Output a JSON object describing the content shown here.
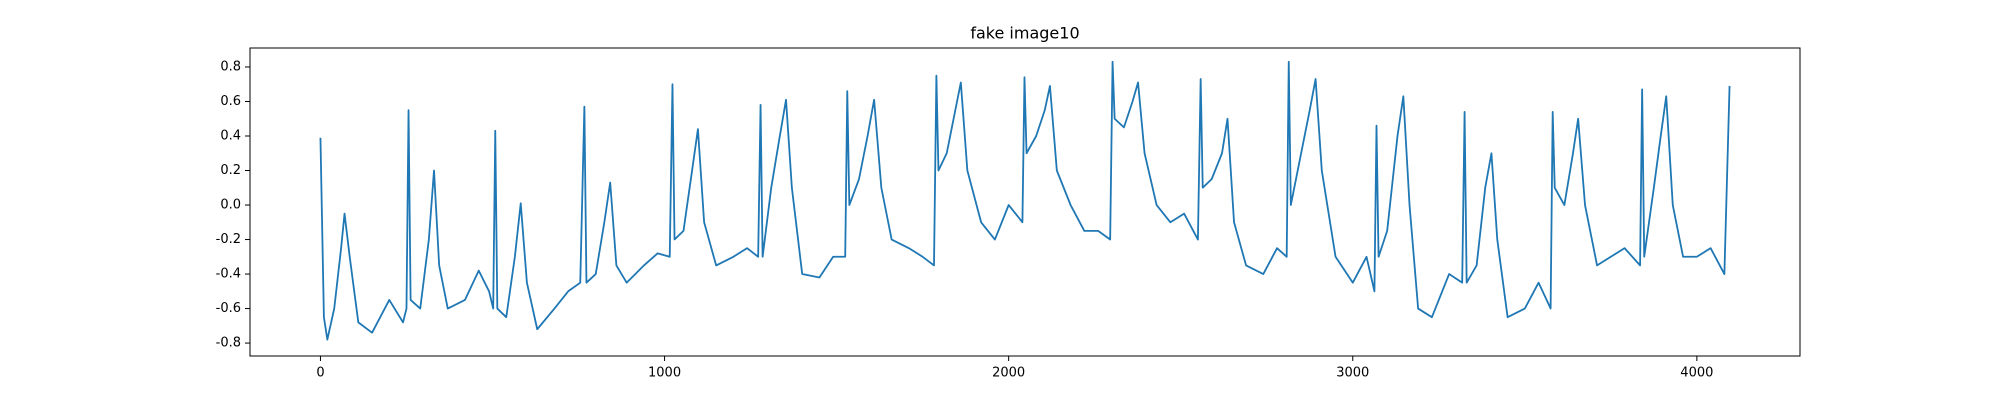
{
  "chart_data": {
    "type": "line",
    "title": "fake image10",
    "x": [
      0,
      10,
      20,
      40,
      60,
      70,
      85,
      110,
      150,
      200,
      240,
      250,
      256,
      262,
      290,
      315,
      330,
      345,
      370,
      420,
      460,
      490,
      502,
      508,
      514,
      540,
      565,
      582,
      600,
      630,
      680,
      720,
      755,
      767,
      773,
      800,
      825,
      842,
      860,
      890,
      940,
      980,
      1015,
      1023,
      1029,
      1055,
      1080,
      1097,
      1115,
      1150,
      1200,
      1240,
      1272,
      1279,
      1285,
      1310,
      1335,
      1353,
      1370,
      1400,
      1450,
      1490,
      1525,
      1531,
      1537,
      1565,
      1590,
      1609,
      1630,
      1660,
      1710,
      1750,
      1783,
      1790,
      1796,
      1820,
      1845,
      1861,
      1880,
      1920,
      1960,
      2000,
      2040,
      2046,
      2052,
      2080,
      2105,
      2120,
      2140,
      2180,
      2220,
      2260,
      2295,
      2302,
      2308,
      2335,
      2360,
      2376,
      2395,
      2430,
      2470,
      2510,
      2550,
      2558,
      2564,
      2590,
      2620,
      2636,
      2655,
      2690,
      2740,
      2780,
      2808,
      2814,
      2820,
      2850,
      2875,
      2892,
      2910,
      2950,
      3000,
      3040,
      3063,
      3069,
      3075,
      3100,
      3130,
      3147,
      3165,
      3190,
      3230,
      3280,
      3318,
      3325,
      3331,
      3360,
      3385,
      3403,
      3420,
      3450,
      3500,
      3540,
      3575,
      3581,
      3587,
      3615,
      3640,
      3655,
      3675,
      3710,
      3750,
      3790,
      3835,
      3841,
      3847,
      3875,
      3895,
      3911,
      3930,
      3960,
      4000,
      4040,
      4080,
      4095
    ],
    "series": [
      {
        "color": "#1f77b4",
        "values": [
          0.39,
          -0.65,
          -0.78,
          -0.6,
          -0.25,
          -0.05,
          -0.3,
          -0.68,
          -0.74,
          -0.55,
          -0.68,
          -0.6,
          0.55,
          -0.55,
          -0.6,
          -0.2,
          0.2,
          -0.35,
          -0.6,
          -0.55,
          -0.38,
          -0.5,
          -0.6,
          0.43,
          -0.6,
          -0.65,
          -0.3,
          0.01,
          -0.45,
          -0.72,
          -0.6,
          -0.5,
          -0.45,
          0.57,
          -0.45,
          -0.4,
          -0.1,
          0.13,
          -0.35,
          -0.45,
          -0.35,
          -0.28,
          -0.3,
          0.7,
          -0.2,
          -0.15,
          0.2,
          0.44,
          -0.1,
          -0.35,
          -0.3,
          -0.25,
          -0.3,
          0.58,
          -0.3,
          0.1,
          0.4,
          0.61,
          0.1,
          -0.4,
          -0.42,
          -0.3,
          -0.3,
          0.66,
          0.0,
          0.15,
          0.4,
          0.61,
          0.1,
          -0.2,
          -0.25,
          -0.3,
          -0.35,
          0.75,
          0.2,
          0.3,
          0.55,
          0.71,
          0.2,
          -0.1,
          -0.2,
          0.0,
          -0.1,
          0.74,
          0.3,
          0.4,
          0.55,
          0.69,
          0.2,
          0.0,
          -0.15,
          -0.15,
          -0.2,
          0.83,
          0.5,
          0.45,
          0.6,
          0.71,
          0.3,
          0.0,
          -0.1,
          -0.05,
          -0.2,
          0.73,
          0.1,
          0.15,
          0.3,
          0.5,
          -0.1,
          -0.35,
          -0.4,
          -0.25,
          -0.3,
          0.83,
          0.0,
          0.3,
          0.55,
          0.73,
          0.2,
          -0.3,
          -0.45,
          -0.3,
          -0.5,
          0.46,
          -0.3,
          -0.15,
          0.4,
          0.63,
          0.0,
          -0.6,
          -0.65,
          -0.4,
          -0.45,
          0.54,
          -0.45,
          -0.35,
          0.1,
          0.3,
          -0.2,
          -0.65,
          -0.6,
          -0.45,
          -0.6,
          0.54,
          0.1,
          0.0,
          0.3,
          0.5,
          0.0,
          -0.35,
          -0.3,
          -0.25,
          -0.35,
          0.67,
          -0.3,
          0.1,
          0.4,
          0.63,
          0.0,
          -0.3,
          -0.3,
          -0.25,
          -0.4,
          0.69
        ]
      }
    ],
    "xlim": [
      -204.75,
      4299.75
    ],
    "xticks": [
      0,
      1000,
      2000,
      3000,
      4000
    ],
    "ylim": [
      -0.875,
      0.91
    ],
    "yticks": [
      -0.8,
      -0.6,
      -0.4,
      -0.2,
      {
        "value": 0,
        "label": "0.0"
      },
      0.2,
      0.4,
      0.6,
      0.8
    ]
  }
}
